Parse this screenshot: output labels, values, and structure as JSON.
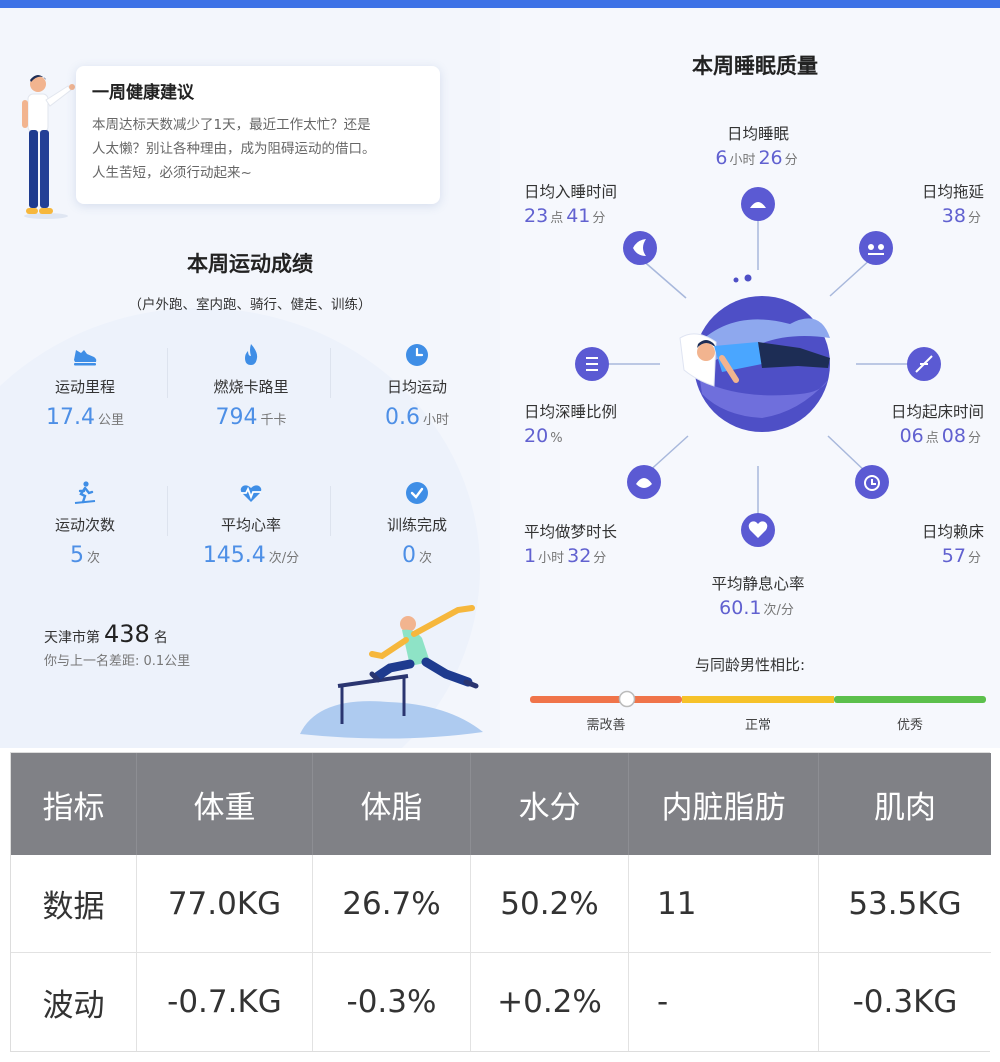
{
  "advice": {
    "title": "一周健康建议",
    "line1": "本周达标天数减少了1天，最近工作太忙？还是",
    "line2": "人太懒？别让各种理由，成为阻碍运动的借口。",
    "line3": "人生苦短，必须行动起来~"
  },
  "exercise": {
    "title": "本周运动成绩",
    "subtitle": "（户外跑、室内跑、骑行、健走、训练）",
    "stats": [
      {
        "label": "运动里程",
        "value": "17.4",
        "unit": "公里",
        "icon": "shoe-icon"
      },
      {
        "label": "燃烧卡路里",
        "value": "794",
        "unit": "千卡",
        "icon": "flame-icon"
      },
      {
        "label": "日均运动",
        "value": "0.6",
        "unit": "小时",
        "icon": "clock-icon"
      },
      {
        "label": "运动次数",
        "value": "5",
        "unit": "次",
        "icon": "treadmill-icon"
      },
      {
        "label": "平均心率",
        "value": "145.4",
        "unit": "次/分",
        "icon": "heartbeat-icon"
      },
      {
        "label": "训练完成",
        "value": "0",
        "unit": "次",
        "icon": "check-circle-icon"
      }
    ],
    "rank_prefix": "天津市第",
    "rank_number": "438",
    "rank_suffix": "名",
    "rank_gap": "你与上一名差距: 0.1公里"
  },
  "sleep": {
    "title": "本周睡眠质量",
    "metrics": {
      "avg_sleep": {
        "label": "日均睡眠",
        "v1": "6",
        "u1": "小时",
        "v2": "26",
        "u2": "分"
      },
      "bedtime": {
        "label": "日均入睡时间",
        "v1": "23",
        "u1": "点",
        "v2": "41",
        "u2": "分"
      },
      "delay": {
        "label": "日均拖延",
        "v1": "38",
        "u1": "分"
      },
      "deep_ratio": {
        "label": "日均深睡比例",
        "v1": "20",
        "u1": "%"
      },
      "wake_time": {
        "label": "日均起床时间",
        "v1": "06",
        "u1": "点",
        "v2": "08",
        "u2": "分"
      },
      "dream": {
        "label": "平均做梦时长",
        "v1": "1",
        "u1": "小时",
        "v2": "32",
        "u2": "分"
      },
      "resting_hr": {
        "label": "平均静息心率",
        "v1": "60.1",
        "u1": "次/分"
      },
      "lying": {
        "label": "日均赖床",
        "v1": "57",
        "u1": "分"
      }
    },
    "compare_label": "与同龄男性相比:",
    "scale": [
      "需改善",
      "正常",
      "优秀"
    ],
    "scale_level": 0.2,
    "colors": {
      "bad": "#f0744a",
      "normal": "#f6c22a",
      "good": "#5cc04c",
      "accent": "#6161d0"
    }
  },
  "body_table": {
    "headers": [
      "指标",
      "体重",
      "体脂",
      "水分",
      "内脏脂肪",
      "肌肉"
    ],
    "rows": [
      [
        "数据",
        "77.0KG",
        "26.7%",
        "50.2%",
        "11",
        "53.5KG"
      ],
      [
        "波动",
        "-0.7.KG",
        "-0.3%",
        "+0.2%",
        "-",
        "-0.3KG"
      ]
    ]
  }
}
